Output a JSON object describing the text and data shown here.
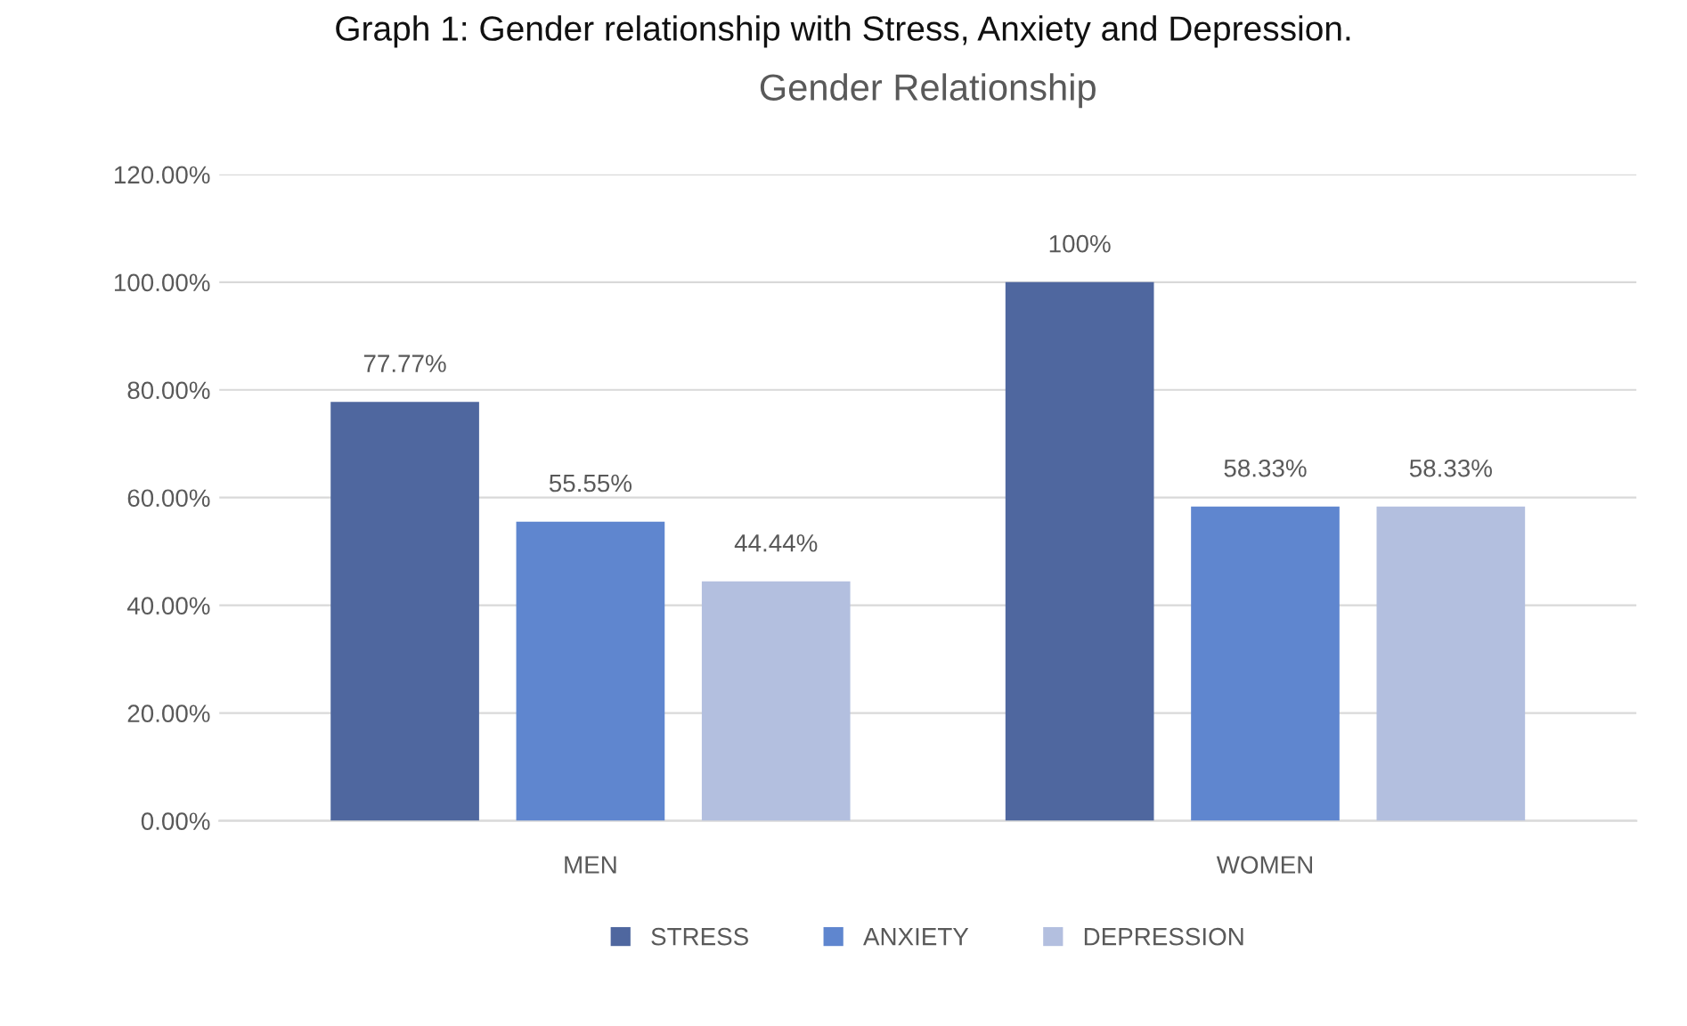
{
  "chart_data": {
    "type": "bar",
    "title": "Gender Relationship",
    "annotations": [
      "Graph 1: Gender relationship with Stress, Anxiety and Depression."
    ],
    "categories": [
      "MEN",
      "WOMEN"
    ],
    "series": [
      {
        "name": "STRESS",
        "color": "#4f679f",
        "values": [
          77.77,
          100
        ],
        "value_labels": [
          "77.77%",
          "100%"
        ]
      },
      {
        "name": "ANXIETY",
        "color": "#5f86cf",
        "values": [
          55.55,
          58.33
        ],
        "value_labels": [
          "55.55%",
          "58.33%"
        ]
      },
      {
        "name": "DEPRESSION",
        "color": "#b3bfdf",
        "values": [
          44.44,
          58.33
        ],
        "value_labels": [
          "44.44%",
          "58.33%"
        ]
      }
    ],
    "ylim": [
      0,
      120
    ],
    "yticks": [
      {
        "value": 0,
        "label": "0.00%"
      },
      {
        "value": 20,
        "label": "20.00%"
      },
      {
        "value": 40,
        "label": "40.00%"
      },
      {
        "value": 60,
        "label": "60.00%"
      },
      {
        "value": 80,
        "label": "80.00%"
      },
      {
        "value": 100,
        "label": "100.00%"
      },
      {
        "value": 120,
        "label": "120.00%"
      }
    ],
    "grid": "y",
    "legend": "bottom"
  }
}
